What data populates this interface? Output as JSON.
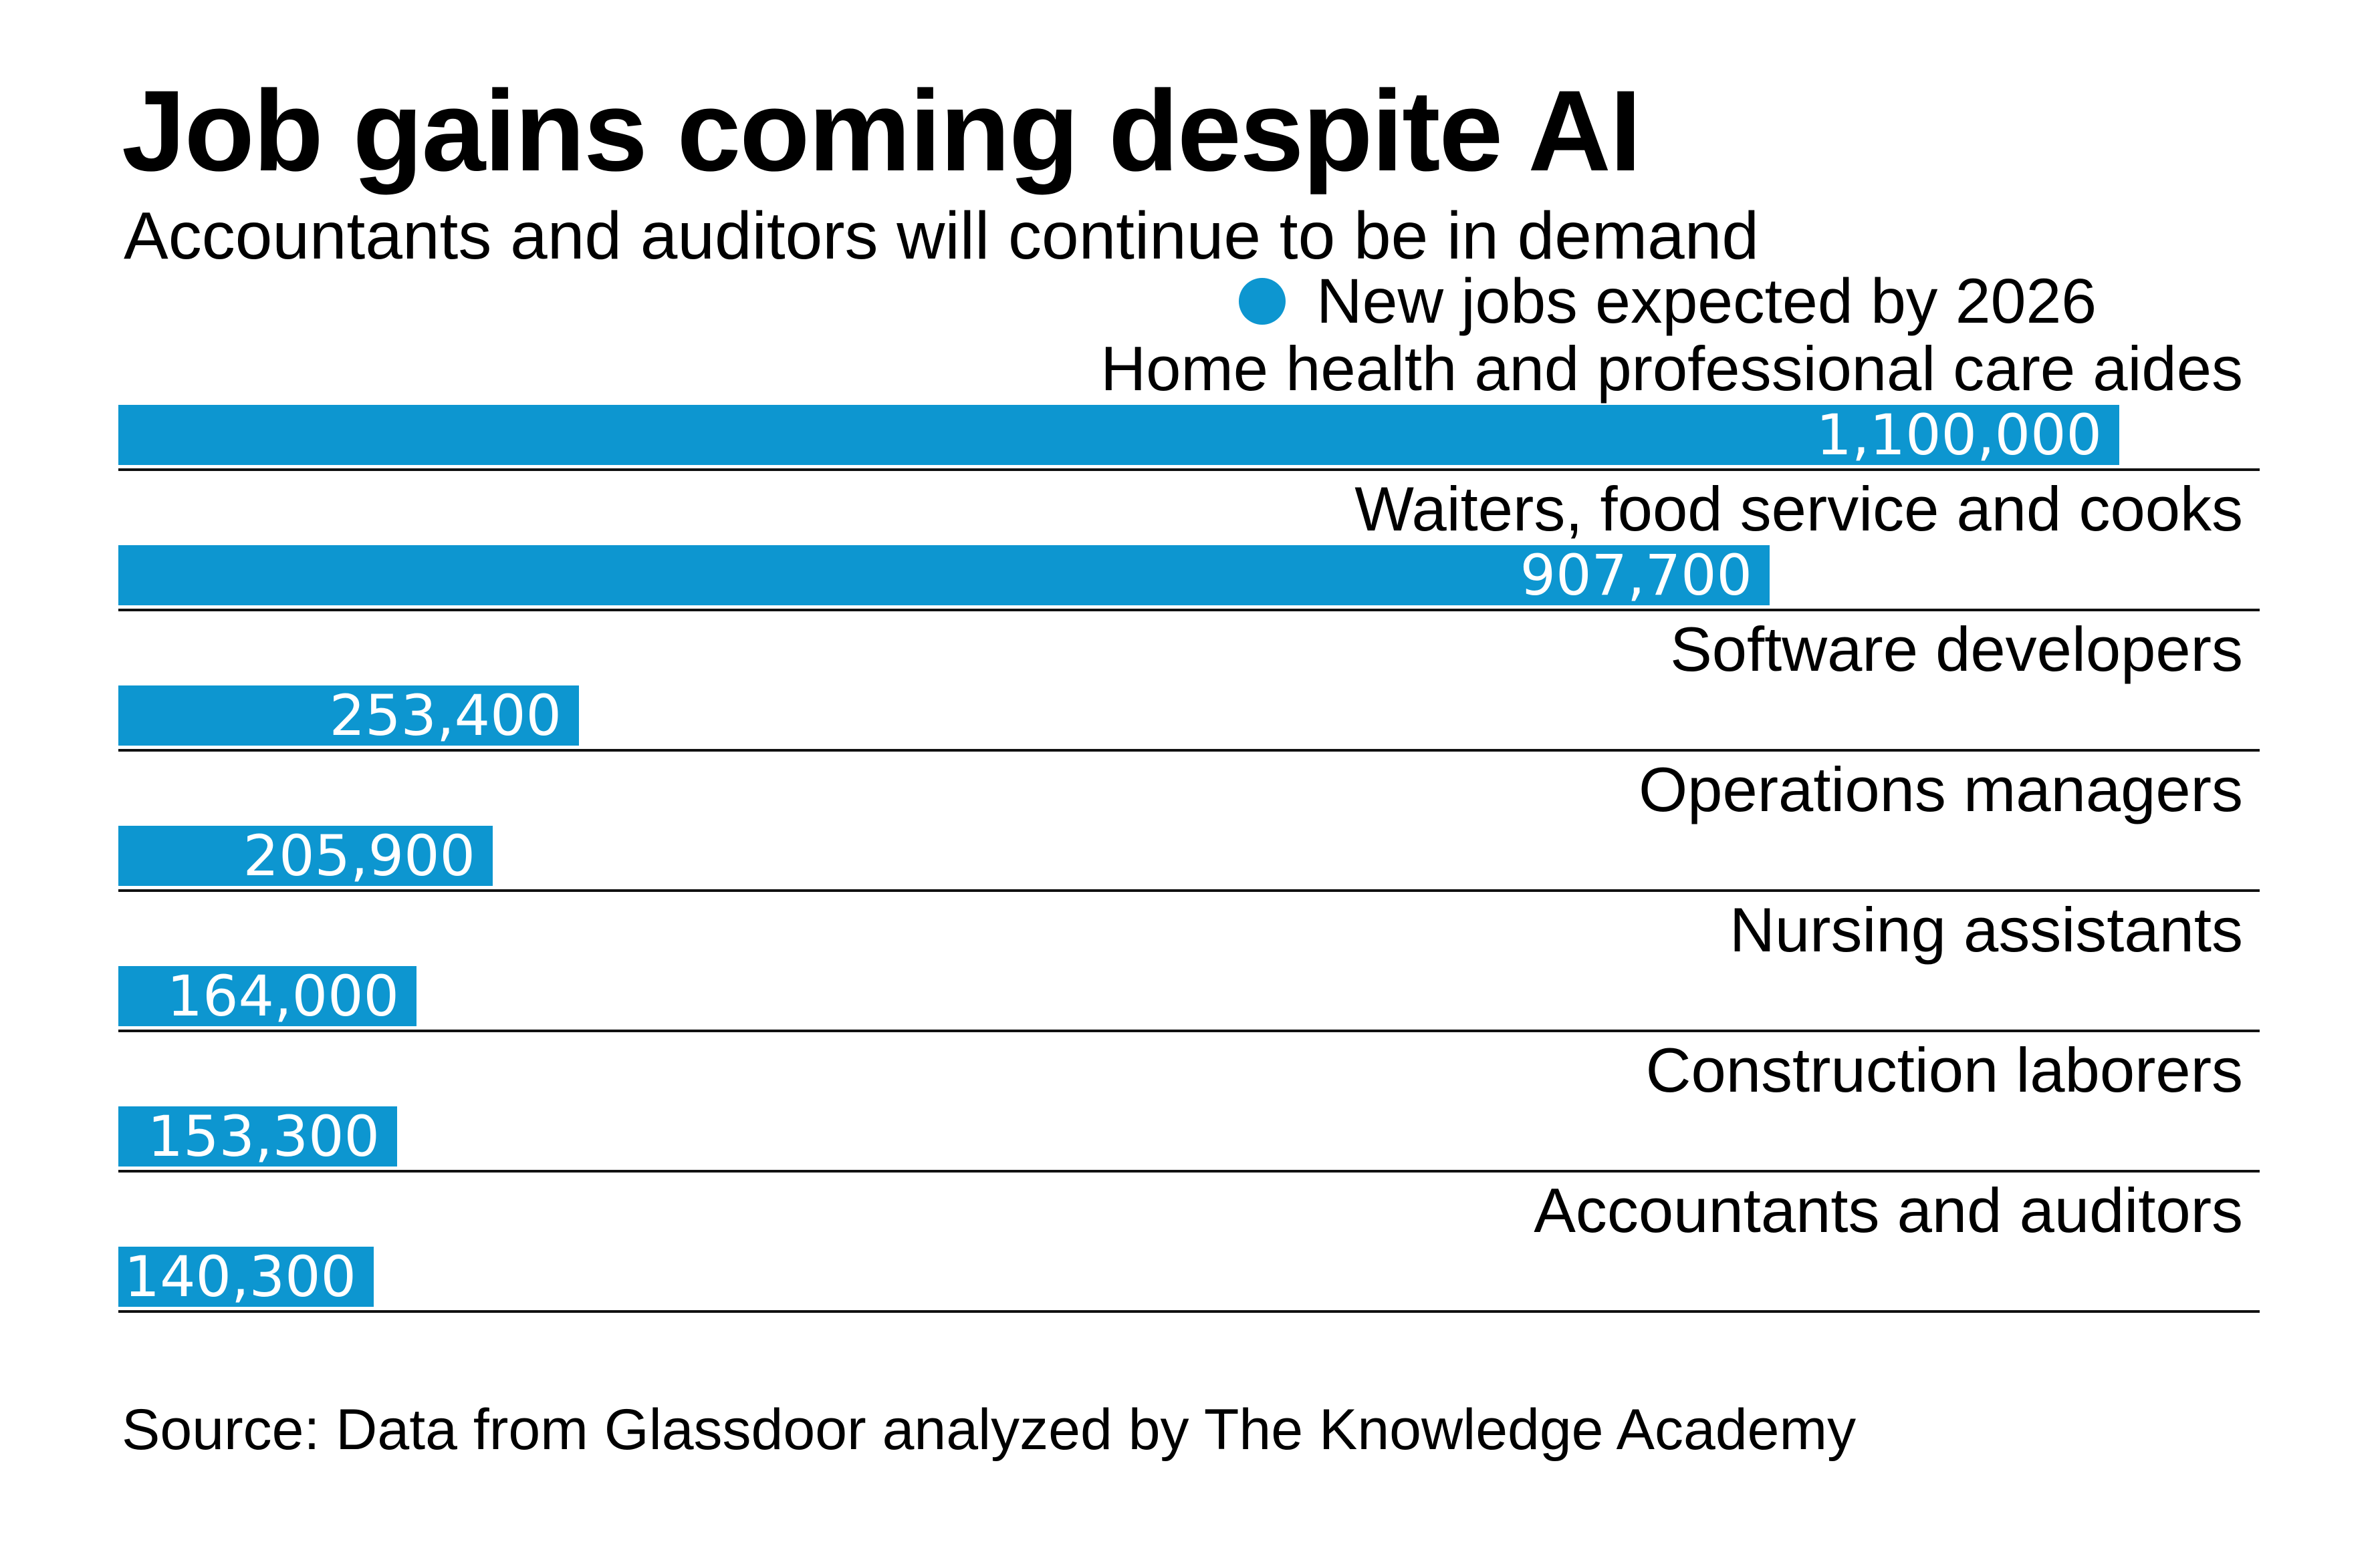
{
  "header": {
    "title": "Job gains coming despite AI",
    "subtitle": "Accountants and auditors will continue to be in demand"
  },
  "legend": {
    "label": "New jobs expected by 2026"
  },
  "chart_data": {
    "type": "bar",
    "orientation": "horizontal",
    "title": "Job gains coming despite AI",
    "subtitle": "Accountants and auditors will continue to be in demand",
    "legend_entries": [
      "New jobs expected by 2026"
    ],
    "categories": [
      "Home health and professional care aides",
      "Waiters, food service and cooks",
      "Software developers",
      "Operations managers",
      "Nursing assistants",
      "Construction laborers",
      "Accountants and auditors"
    ],
    "values": [
      1100000,
      907700,
      253400,
      205900,
      164000,
      153300,
      140300
    ],
    "value_labels": [
      "1,100,000",
      "907,700",
      "253,400",
      "205,900",
      "164,000",
      "153,300",
      "140,300"
    ],
    "xlim": [
      0,
      1100000
    ],
    "grid": false,
    "legend_position": "top-right",
    "value_label_position": "inside-end"
  },
  "source": {
    "text": "Source: Data from Glassdoor analyzed by The Knowledge Academy"
  },
  "colors": {
    "accent_blue": "#0d96d0",
    "text": "#000000",
    "rule": "#111111",
    "background": "#ffffff",
    "value_text": "#ffffff"
  }
}
